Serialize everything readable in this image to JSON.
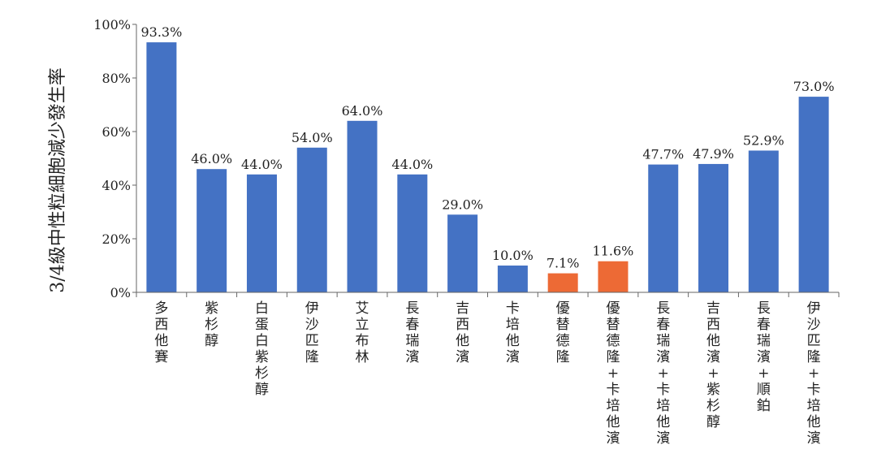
{
  "chart_data": {
    "type": "bar",
    "ylabel": "3/4級中性粒細胞減少發生率",
    "ylim": [
      0,
      100
    ],
    "yticks": [
      "0%",
      "20%",
      "40%",
      "60%",
      "80%",
      "100%"
    ],
    "grid": false,
    "categories": [
      "多西他賽",
      "紫杉醇",
      "白蛋白紫杉醇",
      "伊沙匹隆",
      "艾立布林",
      "長春瑞濱",
      "吉西他濱",
      "卡培他濱",
      "優替德隆",
      "優替德隆+卡培他濱",
      "長春瑞濱+卡培他濱",
      "吉西他濱+紫杉醇",
      "長春瑞濱+順鉑",
      "伊沙匹隆+卡培他濱"
    ],
    "values": [
      93.3,
      46.0,
      44.0,
      54.0,
      64.0,
      44.0,
      29.0,
      10.0,
      7.1,
      11.6,
      47.7,
      47.9,
      52.9,
      73.0
    ],
    "value_labels": [
      "93.3%",
      "46.0%",
      "44.0%",
      "54.0%",
      "64.0%",
      "44.0%",
      "29.0%",
      "10.0%",
      "7.1%",
      "11.6%",
      "47.7%",
      "47.9%",
      "52.9%",
      "73.0%"
    ],
    "highlight": [
      false,
      false,
      false,
      false,
      false,
      false,
      false,
      false,
      true,
      true,
      false,
      false,
      false,
      false
    ],
    "colors": {
      "default": "#4472C4",
      "highlight": "#ED6A35",
      "axis": "#666666"
    }
  }
}
